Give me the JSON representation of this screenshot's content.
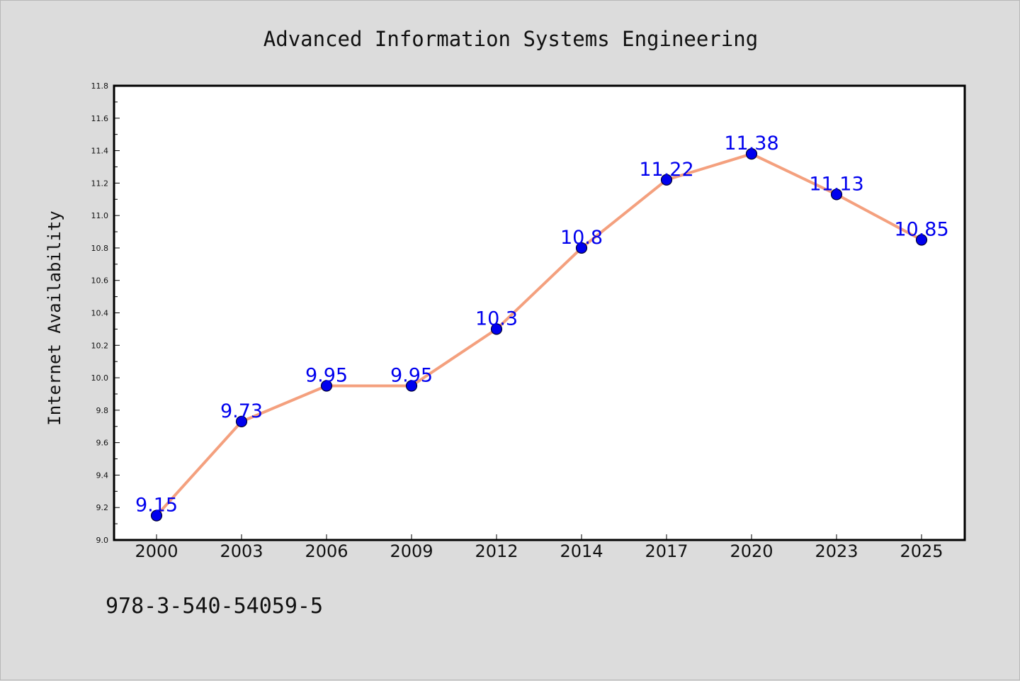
{
  "chart_data": {
    "type": "line",
    "title": "Advanced Information Systems Engineering",
    "xlabel": "",
    "ylabel": "Internet Availability",
    "categories": [
      "2000",
      "2003",
      "2006",
      "2009",
      "2012",
      "2014",
      "2017",
      "2020",
      "2023",
      "2025"
    ],
    "series": [
      {
        "values": [
          9.15,
          9.73,
          9.95,
          9.95,
          10.3,
          10.8,
          11.22,
          11.38,
          11.13,
          10.85
        ],
        "labels": [
          "9.15",
          "9.73",
          "9.95",
          "9.95",
          "10.3",
          "10.8",
          "11.22",
          "11.38",
          "11.13",
          "10.85"
        ]
      }
    ],
    "ylim": [
      9.0,
      11.8
    ],
    "yticks": [
      "9.0",
      "9.2",
      "9.4",
      "9.6",
      "9.8",
      "10.0",
      "10.2",
      "10.4",
      "10.6",
      "10.8",
      "11.0",
      "11.2",
      "11.4",
      "11.6",
      "11.8"
    ],
    "grid": false,
    "legend": "none",
    "colors": {
      "line": "#f4a07e",
      "marker_fill": "#0000ee",
      "marker_edge": "#000033",
      "data_label": "#0000ee",
      "plot_bg": "#ffffff",
      "figure_bg": "#dcdcdc"
    }
  },
  "footer_text": "978-3-540-54059-5"
}
